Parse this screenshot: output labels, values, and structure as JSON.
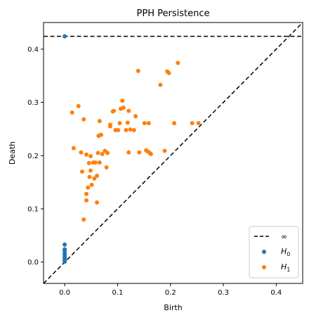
{
  "chart_data": {
    "type": "scatter",
    "title": "PPH Persistence",
    "xlabel": "Birth",
    "ylabel": "Death",
    "xlim": [
      -0.04,
      0.45
    ],
    "ylim": [
      -0.04,
      0.45
    ],
    "xticks": [
      0.0,
      0.1,
      0.2,
      0.3,
      0.4
    ],
    "yticks": [
      0.0,
      0.1,
      0.2,
      0.3,
      0.4
    ],
    "tick_labels_x": [
      "0.0",
      "0.1",
      "0.2",
      "0.3",
      "0.4"
    ],
    "tick_labels_y": [
      "0.0",
      "0.1",
      "0.2",
      "0.3",
      "0.4"
    ],
    "infinity_level": 0.424,
    "grid": false,
    "legend_position": "bottom-right",
    "legend": {
      "infinity_label": "∞",
      "h0_label": "H",
      "h0_sub": "0",
      "h1_label": "H",
      "h1_sub": "1"
    },
    "colors": {
      "h0": "#1f77b4",
      "h1": "#ff7f0e",
      "reference": "#000000"
    },
    "series": [
      {
        "name": "H0",
        "points": [
          [
            0.0,
            0.424
          ],
          [
            0.0,
            0.033
          ],
          [
            0.0,
            0.024
          ],
          [
            0.0,
            0.021
          ],
          [
            0.0,
            0.016
          ],
          [
            0.0,
            0.012
          ],
          [
            0.0,
            0.009
          ],
          [
            0.0,
            0.006
          ],
          [
            0.0,
            0.003
          ],
          [
            0.0,
            0.001
          ]
        ]
      },
      {
        "name": "H1",
        "points": [
          [
            0.014,
            0.281
          ],
          [
            0.017,
            0.214
          ],
          [
            0.026,
            0.293
          ],
          [
            0.031,
            0.206
          ],
          [
            0.033,
            0.17
          ],
          [
            0.036,
            0.268
          ],
          [
            0.036,
            0.08
          ],
          [
            0.041,
            0.202
          ],
          [
            0.041,
            0.128
          ],
          [
            0.041,
            0.116
          ],
          [
            0.044,
            0.14
          ],
          [
            0.046,
            0.186
          ],
          [
            0.047,
            0.16
          ],
          [
            0.049,
            0.199
          ],
          [
            0.049,
            0.172
          ],
          [
            0.051,
            0.145
          ],
          [
            0.054,
            0.187
          ],
          [
            0.056,
            0.157
          ],
          [
            0.058,
            0.187
          ],
          [
            0.061,
            0.162
          ],
          [
            0.061,
            0.112
          ],
          [
            0.063,
            0.205
          ],
          [
            0.064,
            0.237
          ],
          [
            0.066,
            0.265
          ],
          [
            0.066,
            0.187
          ],
          [
            0.068,
            0.239
          ],
          [
            0.069,
            0.239
          ],
          [
            0.071,
            0.203
          ],
          [
            0.076,
            0.209
          ],
          [
            0.079,
            0.178
          ],
          [
            0.081,
            0.205
          ],
          [
            0.086,
            0.258
          ],
          [
            0.086,
            0.255
          ],
          [
            0.091,
            0.283
          ],
          [
            0.093,
            0.284
          ],
          [
            0.096,
            0.248
          ],
          [
            0.101,
            0.248
          ],
          [
            0.104,
            0.261
          ],
          [
            0.106,
            0.288
          ],
          [
            0.109,
            0.303
          ],
          [
            0.111,
            0.29
          ],
          [
            0.116,
            0.248
          ],
          [
            0.119,
            0.262
          ],
          [
            0.121,
            0.284
          ],
          [
            0.121,
            0.206
          ],
          [
            0.124,
            0.249
          ],
          [
            0.131,
            0.248
          ],
          [
            0.134,
            0.274
          ],
          [
            0.139,
            0.359
          ],
          [
            0.141,
            0.206
          ],
          [
            0.151,
            0.261
          ],
          [
            0.154,
            0.21
          ],
          [
            0.157,
            0.208
          ],
          [
            0.159,
            0.261
          ],
          [
            0.161,
            0.205
          ],
          [
            0.163,
            0.203
          ],
          [
            0.181,
            0.333
          ],
          [
            0.189,
            0.209
          ],
          [
            0.194,
            0.358
          ],
          [
            0.197,
            0.355
          ],
          [
            0.207,
            0.261
          ],
          [
            0.214,
            0.374
          ],
          [
            0.241,
            0.261
          ],
          [
            0.253,
            0.261
          ]
        ]
      }
    ]
  }
}
